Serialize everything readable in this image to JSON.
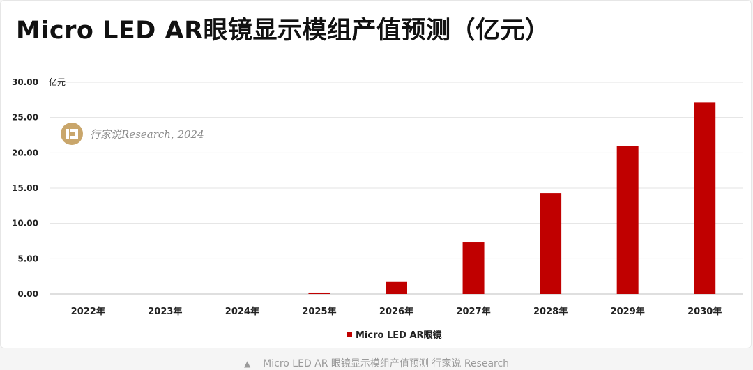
{
  "caption": {
    "marker": "▲",
    "text": "Micro LED AR 眼镜显示模组产值预测 行家说 Research"
  },
  "watermark": {
    "text": "行家说Research, 2024",
    "logo_icon": "hangjiashuo-logo-icon"
  },
  "chart_data": {
    "type": "bar",
    "title": "Micro LED AR眼镜显示模组产值预测（亿元）",
    "unit_label": "亿元",
    "categories": [
      "2022年",
      "2023年",
      "2024年",
      "2025年",
      "2026年",
      "2027年",
      "2028年",
      "2029年",
      "2030年"
    ],
    "series": [
      {
        "name": "Micro LED AR眼镜",
        "values": [
          0,
          0,
          0,
          0.2,
          1.8,
          7.3,
          14.3,
          21.0,
          27.1
        ]
      }
    ],
    "ylim": [
      0,
      30
    ],
    "yticks": [
      "0.00",
      "5.00",
      "10.00",
      "15.00",
      "20.00",
      "25.00",
      "30.00"
    ],
    "grid": true,
    "legend_position": "bottom",
    "bar_color": "#c00000"
  }
}
